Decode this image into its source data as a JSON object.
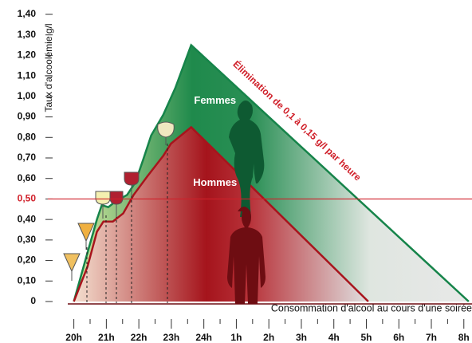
{
  "chart_data": {
    "type": "area",
    "y_label": "Taux d'alcoolémie g/l",
    "x_label": "Consommation d'alcool au cours d'une soirée",
    "annotation": "Élimination de 0,1 à 0,15 g/l par heure",
    "threshold": 0.5,
    "threshold_color": "#d0202a",
    "xlim": [
      -0.8,
      12.3
    ],
    "ylim": [
      0,
      1.4
    ],
    "xticks": [
      {
        "value": 0,
        "label": "20h"
      },
      {
        "value": 1,
        "label": "21h"
      },
      {
        "value": 2,
        "label": "22h"
      },
      {
        "value": 3,
        "label": "23h"
      },
      {
        "value": 4,
        "label": "24h"
      },
      {
        "value": 5,
        "label": "1h"
      },
      {
        "value": 6,
        "label": "2h"
      },
      {
        "value": 7,
        "label": "3h"
      },
      {
        "value": 8,
        "label": "4h"
      },
      {
        "value": 9,
        "label": "5h"
      },
      {
        "value": 10,
        "label": "6h"
      },
      {
        "value": 11,
        "label": "7h"
      },
      {
        "value": 12,
        "label": "8h"
      }
    ],
    "yticks": [
      0,
      {
        "value": 0.1,
        "label": "0,10"
      },
      {
        "value": 0.2,
        "label": "0,20"
      },
      {
        "value": 0.3,
        "label": "0,30"
      },
      {
        "value": 0.4,
        "label": "0,40"
      },
      {
        "value": 0.5,
        "label": "0,50"
      },
      {
        "value": 0.6,
        "label": "0,60"
      },
      {
        "value": 0.7,
        "label": "0,70"
      },
      {
        "value": 0.8,
        "label": "0,80"
      },
      {
        "value": 0.9,
        "label": "0,90"
      },
      {
        "value": 1.0,
        "label": "1,00"
      },
      {
        "value": 1.1,
        "label": "1,10"
      },
      {
        "value": 1.2,
        "label": "1,20"
      },
      {
        "value": 1.3,
        "label": "1,30"
      },
      {
        "value": 1.4,
        "label": "1,40"
      }
    ],
    "series": [
      {
        "name": "Femmes",
        "color": "#16844a",
        "x": [
          0,
          0.37,
          0.71,
          0.86,
          1.06,
          1.3,
          1.64,
          1.89,
          2.13,
          2.38,
          2.75,
          3.12,
          3.61,
          12.15
        ],
        "values": [
          0,
          0.21,
          0.4,
          0.47,
          0.46,
          0.49,
          0.52,
          0.58,
          0.69,
          0.81,
          0.91,
          1.04,
          1.25,
          0
        ]
      },
      {
        "name": "Hommes",
        "color": "#a8141c",
        "x": [
          0,
          0.42,
          0.71,
          0.91,
          1.2,
          1.52,
          1.84,
          2.26,
          2.75,
          2.99,
          3.61,
          9.06
        ],
        "values": [
          0,
          0.17,
          0.34,
          0.39,
          0.39,
          0.43,
          0.52,
          0.61,
          0.71,
          0.77,
          0.85,
          0
        ]
      }
    ]
  }
}
